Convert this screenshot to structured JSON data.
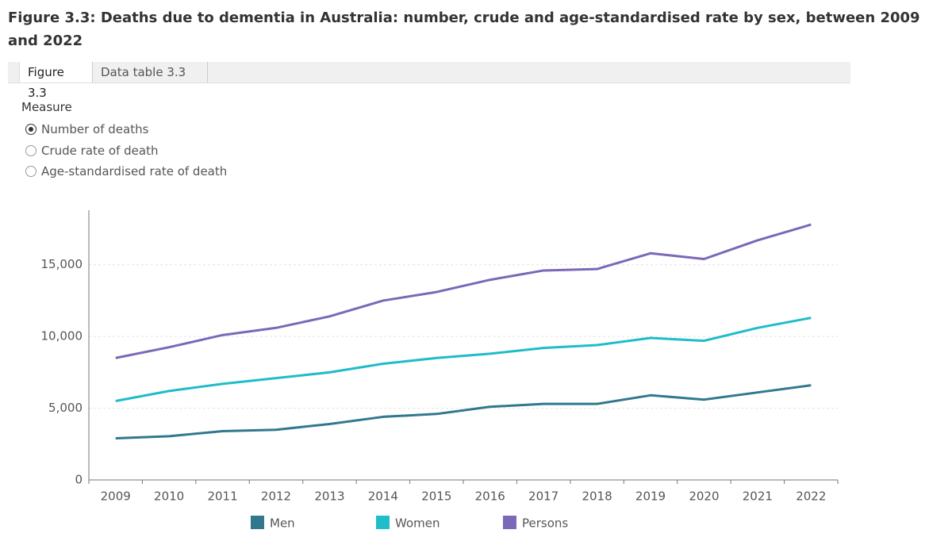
{
  "header": {
    "title": "Figure 3.3: Deaths due to dementia in Australia: number, crude and age-standardised rate by sex, between 2009 and 2022"
  },
  "tabs": [
    "Figure 3.3",
    "Data table 3.3"
  ],
  "measure": {
    "label": "Measure",
    "options": [
      "Number of deaths",
      "Crude rate of death",
      "Age-standardised rate of death"
    ],
    "selected": 0
  },
  "chart_data": {
    "type": "line",
    "categories": [
      "2009",
      "2010",
      "2011",
      "2012",
      "2013",
      "2014",
      "2015",
      "2016",
      "2017",
      "2018",
      "2019",
      "2020",
      "2021",
      "2022"
    ],
    "series": [
      {
        "name": "Men",
        "color": "#31788f",
        "values": [
          2900,
          3050,
          3400,
          3500,
          3900,
          4400,
          4600,
          5100,
          5300,
          5300,
          5900,
          5600,
          6100,
          6600
        ]
      },
      {
        "name": "Women",
        "color": "#1fbcc9",
        "values": [
          5500,
          6200,
          6700,
          7100,
          7500,
          8100,
          8500,
          8800,
          9200,
          9400,
          9900,
          9700,
          10600,
          11300
        ]
      },
      {
        "name": "Persons",
        "color": "#7b68b8",
        "values": [
          8500,
          9250,
          10100,
          10600,
          11400,
          12500,
          13100,
          13950,
          14600,
          14700,
          15800,
          15400,
          16700,
          17800
        ]
      }
    ],
    "ylim": [
      0,
      18800
    ],
    "yticks": [
      0,
      {
        "value": 5000,
        "label": "5,000"
      },
      {
        "value": 10000,
        "label": "10,000"
      },
      {
        "value": 15000,
        "label": "15,000"
      }
    ],
    "grid": true
  }
}
